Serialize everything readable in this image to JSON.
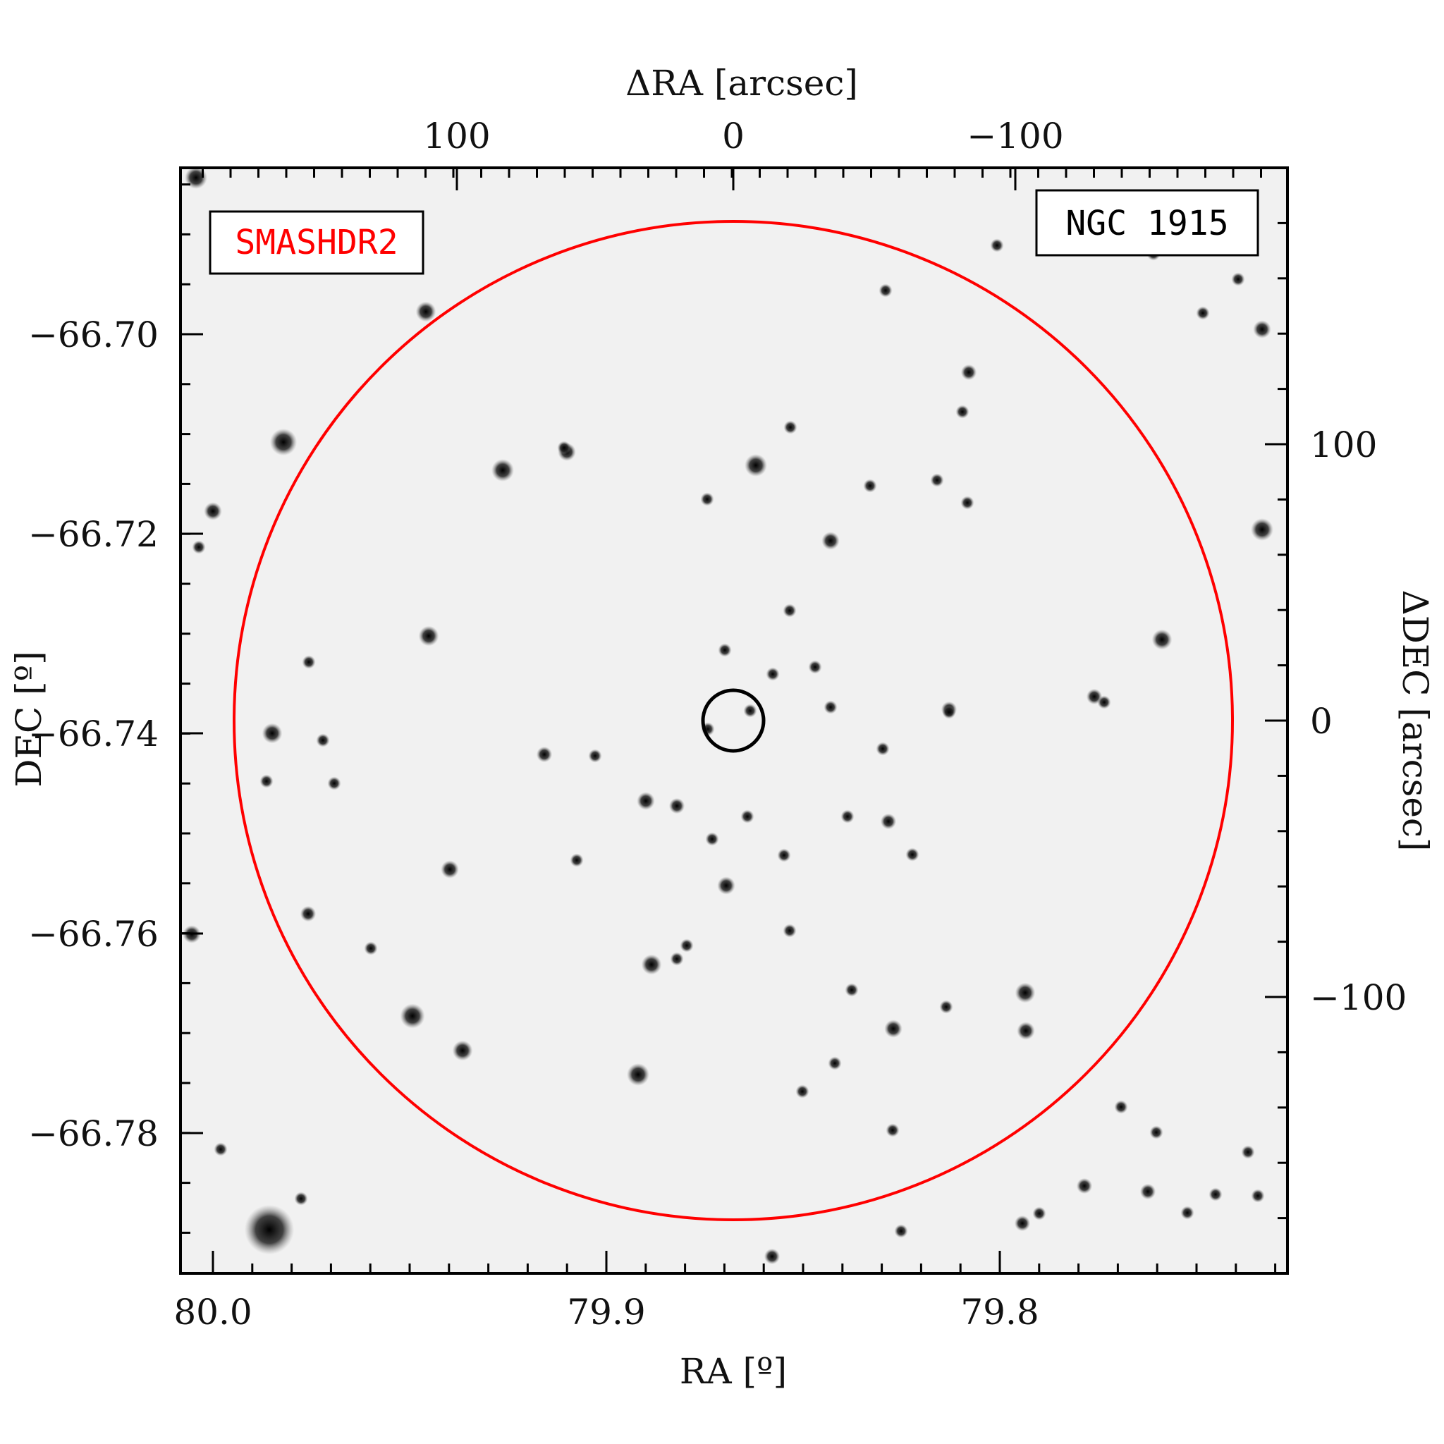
{
  "figure": {
    "top_axis_title": "ΔRA [arcsec]",
    "bottom_axis_title": "RA [º]",
    "left_axis_title": "DEC [º]",
    "right_axis_title": "ΔDEC [arcsec]",
    "survey_label": "SMASHDR2",
    "object_label": "NGC 1915",
    "survey_label_color": "#ff0000",
    "large_circle_color": "#ff0000",
    "small_circle_color": "#000000",
    "axes": {
      "bottom_ticks": [
        "80.0",
        "79.9",
        "79.8"
      ],
      "top_ticks": [
        "100",
        "0",
        "−100"
      ],
      "left_ticks": [
        "−66.70",
        "−66.72",
        "−66.74",
        "−66.76",
        "−66.78"
      ],
      "right_ticks": [
        "100",
        "0",
        "−100"
      ]
    }
  }
}
